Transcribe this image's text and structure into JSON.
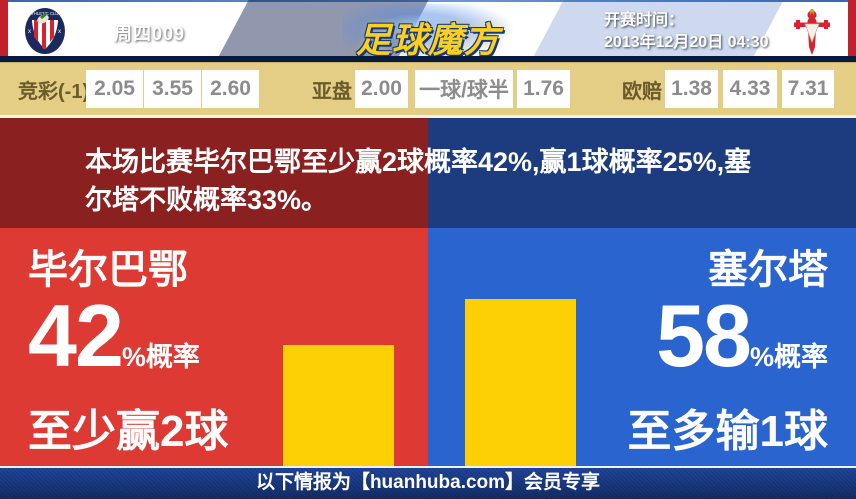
{
  "header": {
    "match_code": "周四009",
    "site_logo": "足球魔方",
    "kickoff_label": "开赛时间：",
    "kickoff_datetime": "2013年12月20日 04:30",
    "home_crest_text": "ATHLETIC CLUB"
  },
  "odds": {
    "jingcai_label": "竞彩(-1)",
    "jingcai": [
      "2.05",
      "3.55",
      "2.60"
    ],
    "yapan_label": "亚盘",
    "yapan_home": "2.00",
    "yapan_handicap": "一球/球半",
    "yapan_away": "1.76",
    "oupei_label": "欧赔",
    "oupei": [
      "1.38",
      "4.33",
      "7.31"
    ]
  },
  "banner": {
    "line1": "本场比赛毕尔巴鄂至少赢2球概率42%,赢1球概率25%,塞",
    "line2": "尔塔不败概率33%。"
  },
  "prediction": {
    "home": {
      "team": "毕尔巴鄂",
      "percent": "42",
      "suffix": "%概率",
      "outcome": "至少赢2球"
    },
    "away": {
      "team": "塞尔塔",
      "percent": "58",
      "suffix": "%概率",
      "outcome": "至多输1球"
    }
  },
  "chart_data": {
    "type": "bar",
    "categories": [
      "毕尔巴鄂",
      "塞尔塔"
    ],
    "values": [
      42,
      58
    ],
    "unit": "%",
    "title": "本场比赛毕尔巴鄂至少赢2球概率42%,赢1球概率25%,塞尔塔不败概率33%。",
    "annotations": [
      "毕尔巴鄂 42%概率 至少赢2球",
      "塞尔塔 58%概率 至多输1球"
    ],
    "bar_color": "#fcd005",
    "grid": false,
    "legend": false
  },
  "footer": {
    "text": "以下情报为【huanhuba.com】会员专享"
  },
  "colors": {
    "home_panel_red": "#dc3a33",
    "away_panel_blue": "#2a64ce",
    "banner_red": "#8a2020",
    "banner_blue": "#1d3c7f",
    "bar_yellow": "#fcd005",
    "odds_bar_tan": "#e4cd84",
    "header_navy": "#16306e",
    "edge_stripe_red": "#c3202e"
  }
}
